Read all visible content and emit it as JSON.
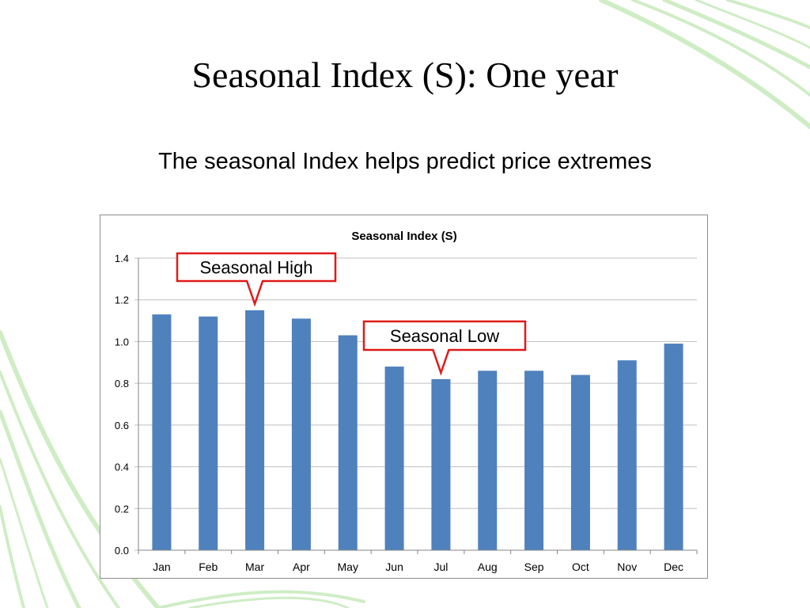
{
  "slide": {
    "title": "Seasonal Index (S): One year",
    "subtitle": "The seasonal Index helps predict price extremes"
  },
  "colors": {
    "bar": "#4f81bd",
    "callout_border": "#e01a1a",
    "gridline": "#bfbfbf",
    "decor_green": "#9ed88c"
  },
  "chart_data": {
    "type": "bar",
    "title": "Seasonal Index (S)",
    "xlabel": "",
    "ylabel": "",
    "categories": [
      "Jan",
      "Feb",
      "Mar",
      "Apr",
      "May",
      "Jun",
      "Jul",
      "Aug",
      "Sep",
      "Oct",
      "Nov",
      "Dec"
    ],
    "values": [
      1.13,
      1.12,
      1.15,
      1.11,
      1.03,
      0.88,
      0.82,
      0.86,
      0.86,
      0.84,
      0.91,
      0.99
    ],
    "ylim": [
      0,
      1.4
    ],
    "yticks": [
      "0.0",
      "0.2",
      "0.4",
      "0.6",
      "0.8",
      "1.0",
      "1.2",
      "1.4"
    ],
    "grid": true,
    "legend": "none",
    "annotations": [
      {
        "text": "Seasonal High",
        "category": "Mar"
      },
      {
        "text": "Seasonal Low",
        "category": "Jul"
      }
    ]
  }
}
